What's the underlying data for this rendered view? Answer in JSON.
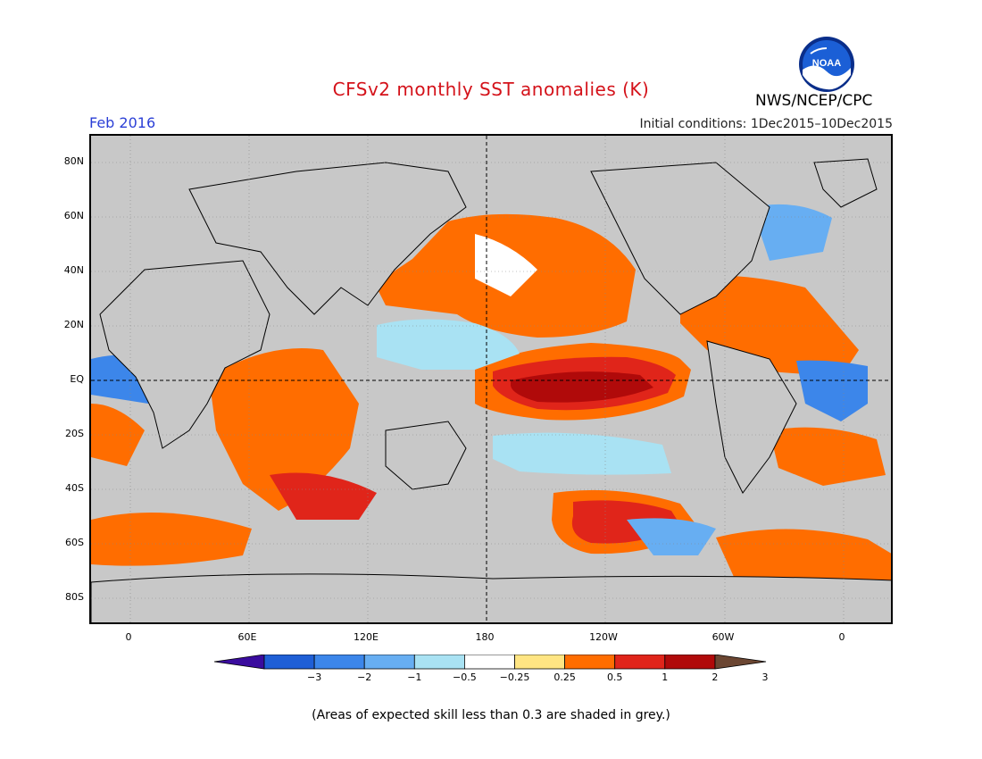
{
  "title": "CFSv2 monthly SST anomalies (K)",
  "agency": "NWS/NCEP/CPC",
  "valid_month": "Feb 2016",
  "initial_conditions": "Initial conditions: 1Dec2015–10Dec2015",
  "logo_text": "NOAA",
  "footnote": "(Areas of expected skill less than 0.3 are shaded in grey.)",
  "axes": {
    "lat_labels": [
      "80N",
      "60N",
      "40N",
      "20N",
      "EQ",
      "20S",
      "40S",
      "60S",
      "80S"
    ],
    "lon_labels": [
      "0",
      "60E",
      "120E",
      "180",
      "120W",
      "60W",
      "0"
    ]
  },
  "colorbar": {
    "tick_labels": [
      "−3",
      "−2",
      "−1",
      "−0.5",
      "−0.25",
      "0.25",
      "0.5",
      "1",
      "2",
      "3"
    ],
    "colors": [
      "#3a0c9e",
      "#1f5fd6",
      "#3c86ea",
      "#67aef2",
      "#a9e2f3",
      "#ffffff",
      "#ffe583",
      "#ff6d00",
      "#e0251a",
      "#b00a0a",
      "#6b4632"
    ]
  },
  "colors": {
    "title": "#d4121a",
    "month": "#2b3fd6",
    "grey_skill": "#c8c8c8",
    "land": "#c8c8c8"
  }
}
